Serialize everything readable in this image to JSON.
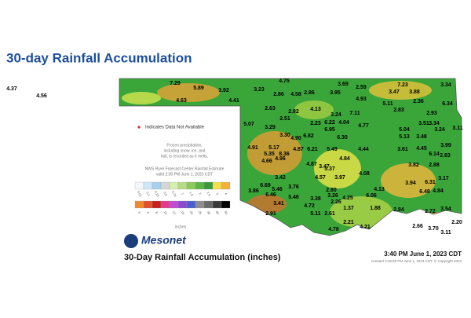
{
  "header": {
    "title": "30-day Rainfall Accumulation"
  },
  "legend": {
    "missing_note": "Indicates Data Not Available",
    "frozen_note": [
      "Frozen precipitation,",
      "including snow, ice, and",
      "hail, is recorded as it melts."
    ],
    "nws_note": "NWS River Forecast Center Rainfall Estimate",
    "nws_valid": "valid 2:00 PM June 1, 2023 CDT",
    "scale_row1": [
      "0.01",
      "0.1",
      "0.25",
      "0.5",
      "0.75",
      "1",
      "1.5",
      "2",
      "2.5",
      "3",
      "4"
    ],
    "scale_row2": [
      "5",
      "6",
      "8",
      "10",
      "12",
      "15",
      "20",
      "25",
      "30",
      "40",
      "50"
    ],
    "unit": "inches"
  },
  "footer": {
    "logo": "Mesonet",
    "map_title": "30-Day Rainfall Accumulation (inches)",
    "timestamp": "3:40 PM June 1, 2023 CDT",
    "created": "Created 3:45:50 PM June 1, 2023 CDT. © Copyright 2023"
  },
  "stations": [
    "4.37",
    "4.56",
    "7.29",
    "5.89",
    "3.92",
    "4.63",
    "4.41",
    "4.75",
    "3.23",
    "2.86",
    "4.58",
    "2.86",
    "3.95",
    "3.69",
    "2.59",
    "4.93",
    "7.23",
    "3.34",
    "3.47",
    "3.88",
    "2.36",
    "6.34",
    "5.11",
    "2.83",
    "2.63",
    "2.82",
    "4.13",
    "3.24",
    "7.11",
    "2.93",
    "2.51",
    "5.07",
    "3.29",
    "2.23",
    "6.22",
    "4.04",
    "4.77",
    "5.04",
    "3.51",
    "3.34",
    "3.24",
    "3.11",
    "6.82",
    "6.95",
    "6.30",
    "5.13",
    "3.48",
    "4.91",
    "5.17",
    "3.30",
    "4.90",
    "5.35",
    "8.36",
    "4.87",
    "6.21",
    "5.49",
    "4.44",
    "3.61",
    "4.45",
    "6.14",
    "3.99",
    "4.66",
    "4.96",
    "4.87",
    "3.47",
    "4.84",
    "3.82",
    "2.88",
    "2.83",
    "6.69",
    "3.42",
    "5.46",
    "3.76",
    "4.57",
    "3.97",
    "5.37",
    "4.08",
    "3.94",
    "6.31",
    "3.86",
    "6.46",
    "5.46",
    "2.80",
    "2.26",
    "4.25",
    "4.13",
    "6.48",
    "4.84",
    "3.17",
    "3.41",
    "4.72",
    "3.38",
    "3.26",
    "1.37",
    "6.06",
    "1.88",
    "2.84",
    "2.72",
    "3.54",
    "2.91",
    "5.11",
    "2.61",
    "2.21",
    "4.21",
    "2.66",
    "3.70",
    "2.20",
    "4.78",
    "3.11"
  ]
}
